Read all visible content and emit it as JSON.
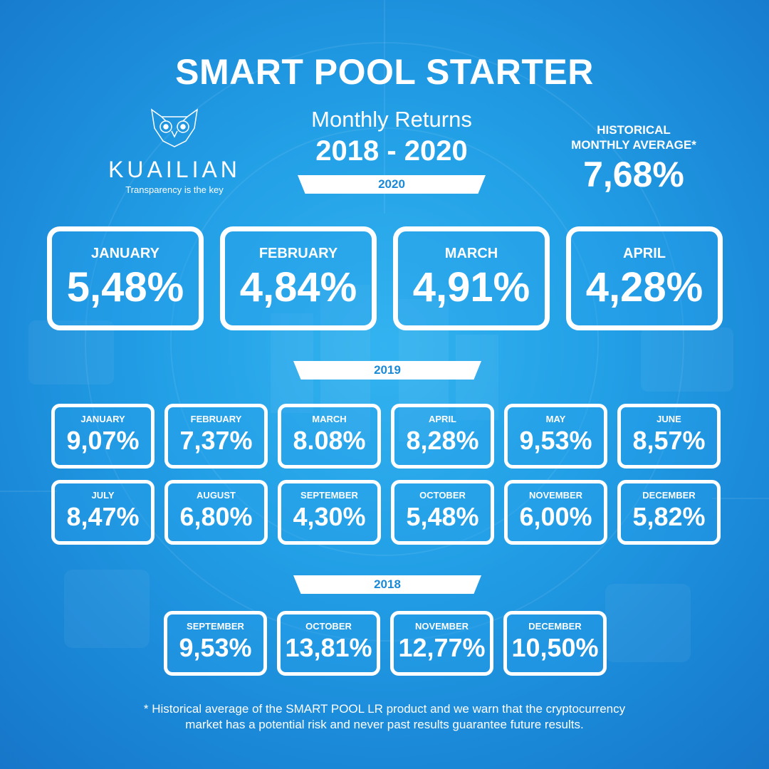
{
  "header": {
    "title": "SMART POOL STARTER",
    "subtitle": "Monthly Returns",
    "years": "2018 - 2020"
  },
  "logo": {
    "name": "KUAILIAN",
    "tagline": "Transparency is the key"
  },
  "average": {
    "label_line1": "HISTORICAL",
    "label_line2": "MONTHLY AVERAGE*",
    "value": "7,68%"
  },
  "sections": {
    "y2020": {
      "label": "2020",
      "months": [
        {
          "month": "JANUARY",
          "value": "5,48%"
        },
        {
          "month": "FEBRUARY",
          "value": "4,84%"
        },
        {
          "month": "MARCH",
          "value": "4,91%"
        },
        {
          "month": "APRIL",
          "value": "4,28%"
        }
      ]
    },
    "y2019": {
      "label": "2019",
      "months": [
        {
          "month": "JANUARY",
          "value": "9,07%"
        },
        {
          "month": "FEBRUARY",
          "value": "7,37%"
        },
        {
          "month": "MARCH",
          "value": "8.08%"
        },
        {
          "month": "APRIL",
          "value": "8,28%"
        },
        {
          "month": "MAY",
          "value": "9,53%"
        },
        {
          "month": "JUNE",
          "value": "8,57%"
        },
        {
          "month": "JULY",
          "value": "8,47%"
        },
        {
          "month": "AUGUST",
          "value": "6,80%"
        },
        {
          "month": "SEPTEMBER",
          "value": "4,30%"
        },
        {
          "month": "OCTOBER",
          "value": "5,48%"
        },
        {
          "month": "NOVEMBER",
          "value": "6,00%"
        },
        {
          "month": "DECEMBER",
          "value": "5,82%"
        }
      ]
    },
    "y2018": {
      "label": "2018",
      "months": [
        {
          "month": "SEPTEMBER",
          "value": "9,53%"
        },
        {
          "month": "OCTOBER",
          "value": "13,81%"
        },
        {
          "month": "NOVEMBER",
          "value": "12,77%"
        },
        {
          "month": "DECEMBER",
          "value": "10,50%"
        }
      ]
    }
  },
  "footnote": {
    "line1": "* Historical average of the SMART POOL LR product and we warn that the cryptocurrency",
    "line2": "market has a potential risk and never past results guarantee future results."
  }
}
